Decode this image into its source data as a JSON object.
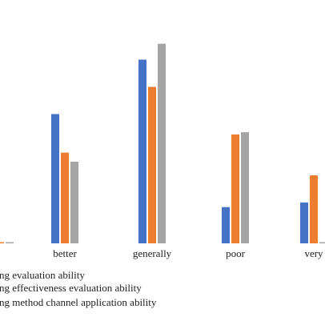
{
  "chart_data": {
    "type": "bar",
    "categories": [
      "",
      "better",
      "generally",
      "poor",
      "very"
    ],
    "series": [
      {
        "name": "ng evaluation ability",
        "color": "#4472C4",
        "values": [
          0,
          57,
          81,
          16,
          18
        ]
      },
      {
        "name": "ng effectiveness evaluation ability",
        "color": "#ED7D31",
        "values": [
          0,
          40,
          69,
          48,
          30
        ]
      },
      {
        "name": "ng method channel application ability",
        "color": "#A5A5A5",
        "values": [
          0,
          36,
          88,
          49,
          0
        ]
      }
    ],
    "ylim": [
      0,
      90
    ],
    "grid": false,
    "legend_position": "bottom-left"
  }
}
